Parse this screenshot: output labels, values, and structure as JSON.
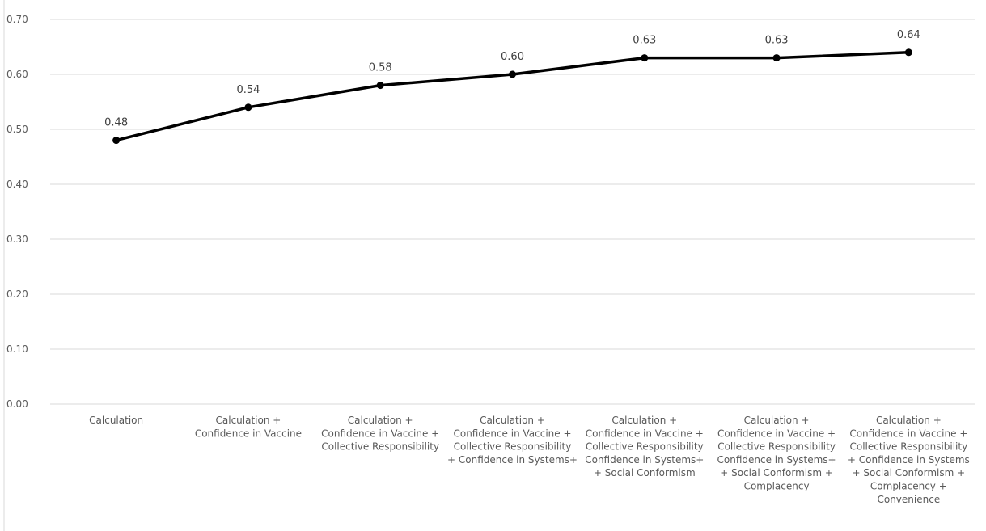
{
  "chart_data": {
    "type": "line",
    "title": "",
    "xlabel": "",
    "ylabel": "",
    "ylim": [
      0,
      0.7
    ],
    "y_ticks": [
      "0.00",
      "0.10",
      "0.20",
      "0.30",
      "0.40",
      "0.50",
      "0.60",
      "0.70"
    ],
    "grid": true,
    "legend": "none",
    "colors": {
      "line": "#000000",
      "grid": "#d9d9d9",
      "tick_text": "#595959"
    },
    "categories": [
      [
        "Calculation"
      ],
      [
        "Calculation +",
        "Confidence in Vaccine"
      ],
      [
        "Calculation +",
        "Confidence in Vaccine +",
        "Collective Responsibility"
      ],
      [
        "Calculation +",
        "Confidence in Vaccine +",
        "Collective Responsibility",
        "+ Confidence in Systems+"
      ],
      [
        "Calculation +",
        "Confidence in Vaccine +",
        "Collective Responsibility",
        "Confidence in Systems+",
        "+ Social Conformism"
      ],
      [
        "Calculation +",
        "Confidence in Vaccine +",
        "Collective Responsibility",
        "Confidence in Systems+",
        "+ Social Conformism +",
        "Complacency"
      ],
      [
        "Calculation +",
        "Confidence in Vaccine +",
        "Collective Responsibility",
        "+ Confidence in Systems",
        "+ Social Conformism +",
        "Complacency +",
        "Convenience"
      ]
    ],
    "series": [
      {
        "values": [
          0.48,
          0.54,
          0.58,
          0.6,
          0.63,
          0.63,
          0.64
        ],
        "labels": [
          "0.48",
          "0.54",
          "0.58",
          "0.60",
          "0.63",
          "0.63",
          "0.64"
        ]
      }
    ]
  }
}
